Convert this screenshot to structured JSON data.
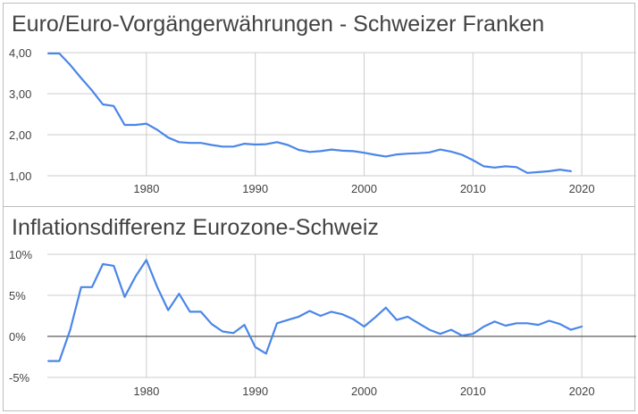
{
  "chart_data": [
    {
      "type": "line",
      "title": "Euro/Euro-Vorgängerwährungen - Schweizer Franken",
      "xlabel": "",
      "ylabel": "",
      "xlim": [
        1970.9,
        2025
      ],
      "ylim": [
        1.0,
        4.0
      ],
      "y_ticks": [
        1.0,
        2.0,
        3.0,
        4.0
      ],
      "y_tick_labels": [
        "1,00",
        "2,00",
        "3,00",
        "4,00"
      ],
      "x_ticks": [
        1980,
        1990,
        2000,
        2010,
        2020
      ],
      "x_tick_labels": [
        "1980",
        "1990",
        "2000",
        "2010",
        "2020"
      ],
      "grid": true,
      "series_color": "#4a86e8",
      "series": [
        {
          "x": [
            1971,
            1972,
            1973,
            1974,
            1975,
            1976,
            1977,
            1978,
            1979,
            1980,
            1981,
            1982,
            1983,
            1984,
            1985,
            1986,
            1987,
            1988,
            1989,
            1990,
            1991,
            1992,
            1993,
            1994,
            1995,
            1996,
            1997,
            1998,
            1999,
            2000,
            2001,
            2002,
            2003,
            2004,
            2005,
            2006,
            2007,
            2008,
            2009,
            2010,
            2011,
            2012,
            2013,
            2014,
            2015,
            2016,
            2017,
            2018,
            2019
          ],
          "y": [
            3.98,
            3.98,
            3.7,
            3.38,
            3.08,
            2.74,
            2.7,
            2.24,
            2.24,
            2.27,
            2.12,
            1.93,
            1.82,
            1.8,
            1.8,
            1.75,
            1.71,
            1.71,
            1.78,
            1.76,
            1.77,
            1.82,
            1.75,
            1.63,
            1.58,
            1.6,
            1.64,
            1.61,
            1.6,
            1.56,
            1.51,
            1.47,
            1.52,
            1.54,
            1.55,
            1.57,
            1.64,
            1.59,
            1.51,
            1.38,
            1.23,
            1.2,
            1.23,
            1.21,
            1.07,
            1.09,
            1.11,
            1.15,
            1.11
          ]
        }
      ]
    },
    {
      "type": "line",
      "title": "Inflationsdifferenz Eurozone-Schweiz",
      "xlabel": "",
      "ylabel": "",
      "xlim": [
        1970.9,
        2025
      ],
      "ylim": [
        -5,
        10
      ],
      "y_ticks": [
        -5,
        0,
        5,
        10
      ],
      "y_tick_labels": [
        "-5%",
        "0%",
        "5%",
        "10%"
      ],
      "x_ticks": [
        1980,
        1990,
        2000,
        2010,
        2020
      ],
      "x_tick_labels": [
        "1980",
        "1990",
        "2000",
        "2010",
        "2020"
      ],
      "grid": true,
      "baseline": 0,
      "series_color": "#4a86e8",
      "series": [
        {
          "x": [
            1971,
            1972,
            1973,
            1974,
            1975,
            1976,
            1977,
            1978,
            1979,
            1980,
            1981,
            1982,
            1983,
            1984,
            1985,
            1986,
            1987,
            1988,
            1989,
            1990,
            1991,
            1992,
            1993,
            1994,
            1995,
            1996,
            1997,
            1998,
            1999,
            2000,
            2001,
            2002,
            2003,
            2004,
            2005,
            2006,
            2007,
            2008,
            2009,
            2010,
            2011,
            2012,
            2013,
            2014,
            2015,
            2016,
            2017,
            2018,
            2019,
            2020
          ],
          "y": [
            -3,
            -3,
            0.8,
            6,
            6,
            8.8,
            8.6,
            4.8,
            7.3,
            9.3,
            6,
            3.2,
            5.2,
            3,
            3,
            1.5,
            0.6,
            0.4,
            1.4,
            -1.3,
            -2.1,
            1.6,
            2,
            2.4,
            3.1,
            2.5,
            3,
            2.7,
            2.1,
            1.2,
            2.3,
            3.5,
            2,
            2.4,
            1.6,
            0.8,
            0.3,
            0.8,
            0.1,
            0.3,
            1.2,
            1.8,
            1.3,
            1.6,
            1.6,
            1.4,
            1.9,
            1.5,
            0.8,
            1.2
          ]
        }
      ]
    }
  ]
}
